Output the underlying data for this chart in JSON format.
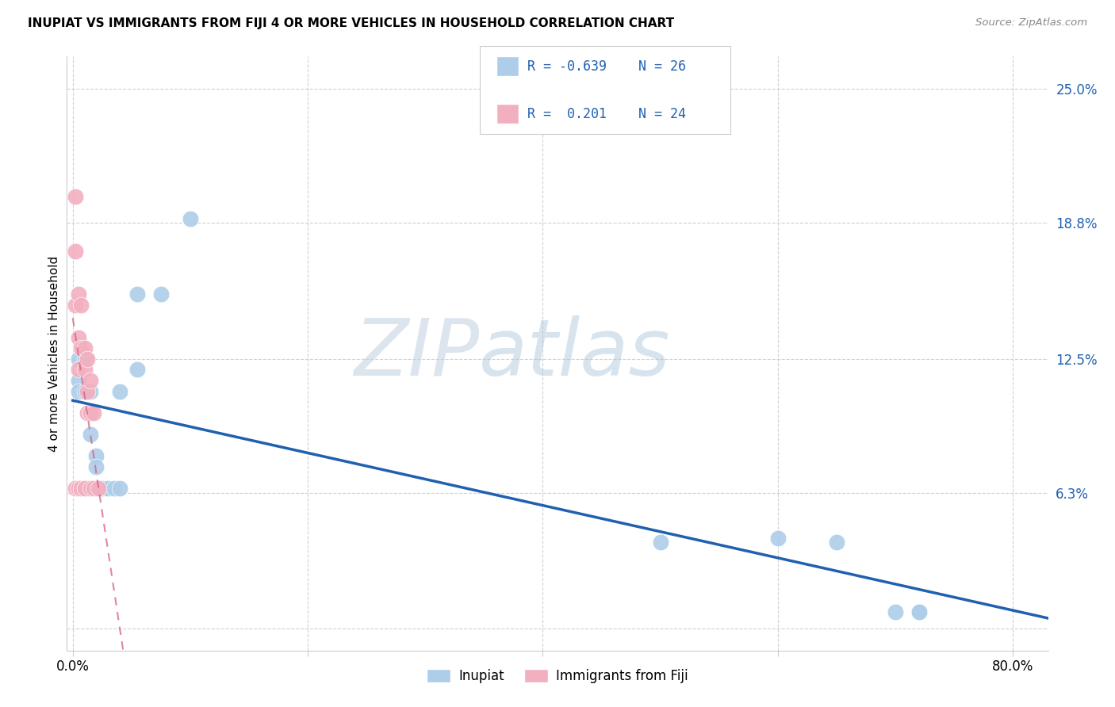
{
  "title": "INUPIAT VS IMMIGRANTS FROM FIJI 4 OR MORE VEHICLES IN HOUSEHOLD CORRELATION CHART",
  "source": "Source: ZipAtlas.com",
  "ylabel_label": "4 or more Vehicles in Household",
  "xlim": [
    -0.005,
    0.83
  ],
  "ylim": [
    -0.01,
    0.265
  ],
  "yticks": [
    0.0,
    0.063,
    0.125,
    0.188,
    0.25
  ],
  "ytick_labels": [
    "",
    "6.3%",
    "12.5%",
    "18.8%",
    "25.0%"
  ],
  "xticks": [
    0.0,
    0.2,
    0.4,
    0.6,
    0.8
  ],
  "xtick_labels": [
    "0.0%",
    "",
    "",
    "",
    "80.0%"
  ],
  "inupiat_R": -0.639,
  "inupiat_N": 26,
  "fiji_R": 0.201,
  "fiji_N": 24,
  "inupiat_color": "#aecde8",
  "fiji_color": "#f2afc0",
  "inupiat_line_color": "#2060b0",
  "fiji_line_color": "#d4607a",
  "watermark_zip": "ZIP",
  "watermark_atlas": "atlas",
  "inupiat_x": [
    0.1,
    0.055,
    0.075,
    0.005,
    0.005,
    0.005,
    0.005,
    0.01,
    0.01,
    0.015,
    0.015,
    0.02,
    0.02,
    0.02,
    0.025,
    0.03,
    0.035,
    0.04,
    0.04,
    0.055,
    0.5,
    0.6,
    0.65,
    0.7,
    0.72,
    0.72
  ],
  "inupiat_y": [
    0.19,
    0.155,
    0.155,
    0.125,
    0.115,
    0.11,
    0.065,
    0.125,
    0.11,
    0.11,
    0.09,
    0.08,
    0.075,
    0.065,
    0.065,
    0.065,
    0.065,
    0.065,
    0.11,
    0.12,
    0.04,
    0.042,
    0.04,
    0.008,
    0.008,
    0.008
  ],
  "fiji_x": [
    0.002,
    0.002,
    0.002,
    0.002,
    0.005,
    0.005,
    0.005,
    0.005,
    0.007,
    0.007,
    0.007,
    0.01,
    0.01,
    0.01,
    0.01,
    0.012,
    0.012,
    0.012,
    0.015,
    0.015,
    0.015,
    0.018,
    0.018,
    0.022
  ],
  "fiji_y": [
    0.2,
    0.175,
    0.15,
    0.065,
    0.155,
    0.135,
    0.12,
    0.065,
    0.15,
    0.13,
    0.065,
    0.13,
    0.12,
    0.065,
    0.065,
    0.125,
    0.11,
    0.1,
    0.115,
    0.1,
    0.065,
    0.1,
    0.065,
    0.065
  ],
  "inupiat_line_x": [
    0.0,
    0.83
  ],
  "fiji_line_x": [
    0.0,
    0.4
  ]
}
